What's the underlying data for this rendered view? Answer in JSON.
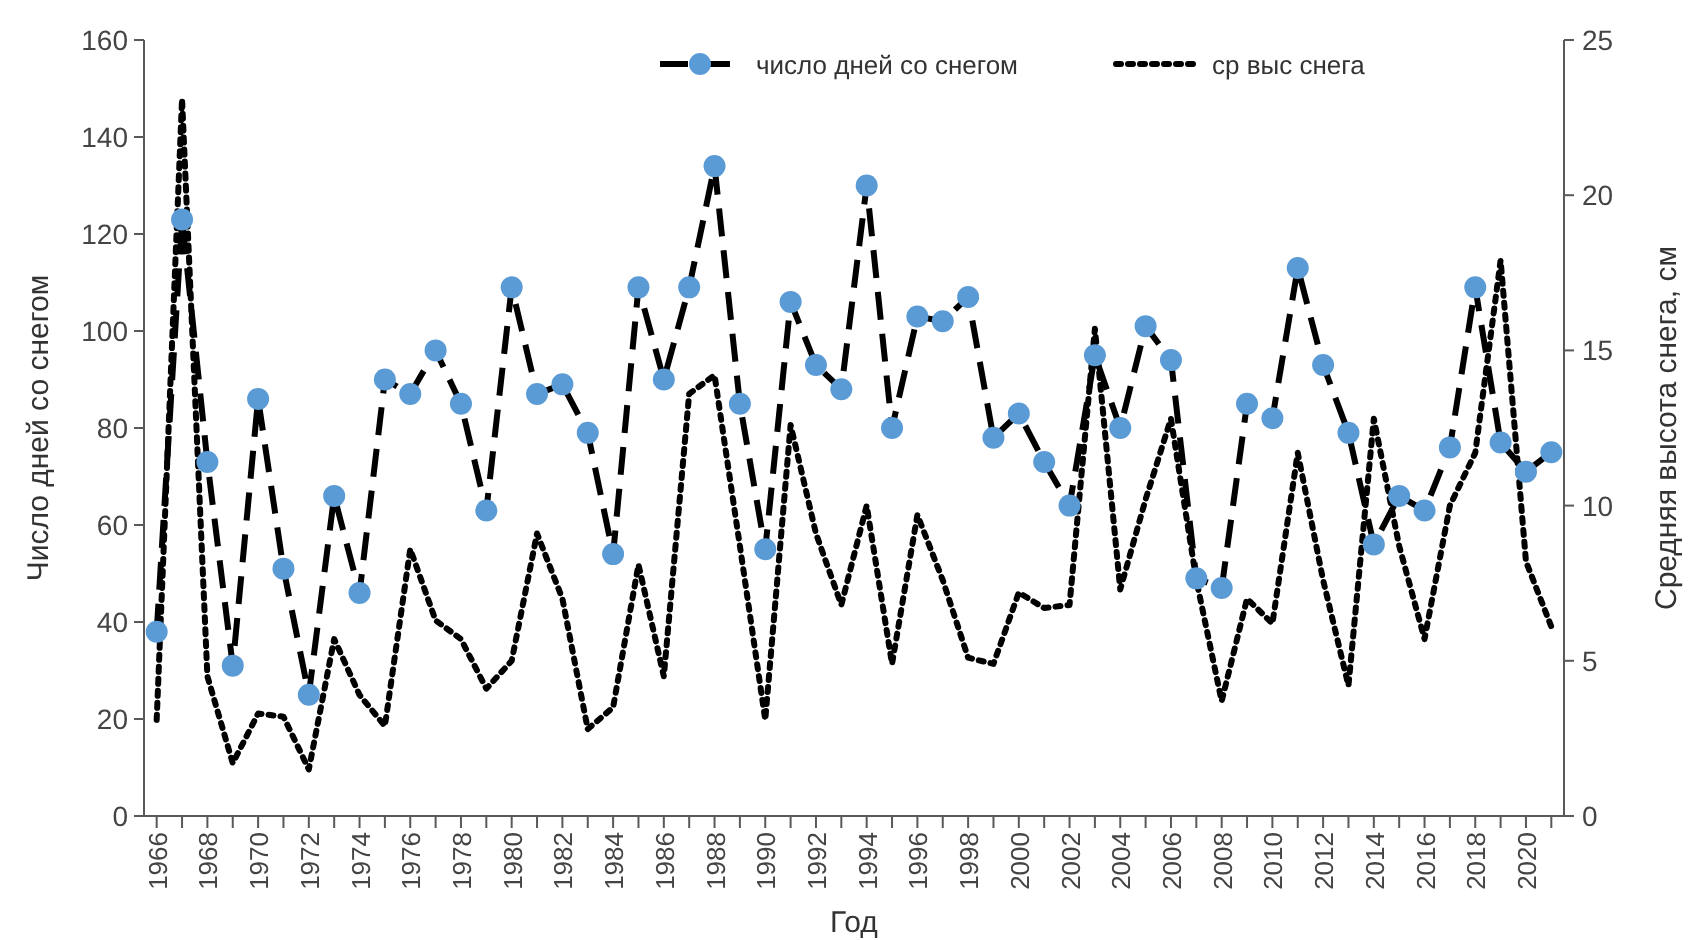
{
  "chart_data": {
    "type": "line",
    "xlabel": "Год",
    "ylabel": "Число дней со снегом",
    "y2label": "Средняя высота снега, см",
    "x": [
      1966,
      1967,
      1968,
      1969,
      1970,
      1971,
      1972,
      1973,
      1974,
      1975,
      1976,
      1977,
      1978,
      1979,
      1980,
      1981,
      1982,
      1983,
      1984,
      1985,
      1986,
      1987,
      1988,
      1989,
      1990,
      1991,
      1992,
      1993,
      1994,
      1995,
      1996,
      1997,
      1998,
      1999,
      2000,
      2001,
      2002,
      2003,
      2004,
      2005,
      2006,
      2007,
      2008,
      2009,
      2010,
      2011,
      2012,
      2013,
      2014,
      2015,
      2016,
      2017,
      2018,
      2019,
      2020,
      2021
    ],
    "series": [
      {
        "name": "число дней со снегом",
        "color": "#000000",
        "colors": [
          "#5b9bd5",
          "#5b9bd5",
          "#5b9bd5",
          "#5b9bd5",
          "#5b9bd5",
          "#5b9bd5",
          "#5b9bd5",
          "#5b9bd5",
          "#5b9bd5",
          "#5b9bd5",
          "#5b9bd5",
          "#5b9bd5",
          "#5b9bd5",
          "#5b9bd5",
          "#5b9bd5",
          "#5b9bd5",
          "#5b9bd5",
          "#5b9bd5",
          "#5b9bd5",
          "#5b9bd5",
          "#5b9bd5",
          "#5b9bd5",
          "#5b9bd5",
          "#5b9bd5",
          "#5b9bd5",
          "#5b9bd5",
          "#5b9bd5",
          "#5b9bd5",
          "#5b9bd5",
          "#5b9bd5",
          "#5b9bd5",
          "#5b9bd5",
          "#5b9bd5",
          "#5b9bd5",
          "#5b9bd5",
          "#5b9bd5",
          "#5b9bd5",
          "#5b9bd5",
          "#5b9bd5",
          "#5b9bd5",
          "#5b9bd5",
          "#5b9bd5",
          "#5b9bd5",
          "#5b9bd5",
          "#5b9bd5",
          "#5b9bd5",
          "#5b9bd5",
          "#5b9bd5",
          "#5b9bd5",
          "#5b9bd5",
          "#5b9bd5",
          "#5b9bd5",
          "#5b9bd5",
          "#5b9bd5",
          "#5b9bd5",
          "#5b9bd5"
        ],
        "marker": "circle",
        "line_style": "dashed",
        "values": [
          38,
          123,
          73,
          31,
          86,
          51,
          25,
          66,
          46,
          90,
          87,
          96,
          85,
          63,
          109,
          87,
          89,
          79,
          54,
          109,
          90,
          109,
          134,
          85,
          55,
          106,
          93,
          88,
          130,
          80,
          103,
          102,
          107,
          78,
          83,
          73,
          64,
          95,
          80,
          101,
          94,
          49,
          47,
          85,
          82,
          113,
          93,
          79,
          56,
          66,
          63,
          76,
          109,
          77,
          71,
          75
        ]
      },
      {
        "name": "ср выс снега",
        "color": "#000000",
        "marker": "none",
        "line_style": "dotted",
        "axis": "y2",
        "values": [
          3.1,
          23.1,
          4.5,
          1.7,
          3.3,
          3.2,
          1.5,
          5.7,
          3.9,
          2.9,
          8.6,
          6.3,
          5.7,
          4.1,
          5,
          9.1,
          7,
          2.8,
          3.5,
          8.1,
          4.5,
          13.6,
          14.2,
          8.7,
          3.1,
          12.6,
          9.1,
          6.8,
          10,
          4.9,
          9.7,
          7.6,
          5.1,
          4.9,
          7.2,
          6.7,
          6.8,
          15.7,
          7.3,
          10.2,
          12.8,
          7.6,
          3.7,
          7,
          6.2,
          11.7,
          7.6,
          4.2,
          12.8,
          8.7,
          5.7,
          10,
          11.7,
          17.9,
          8.2,
          6.1
        ]
      }
    ],
    "xlim": [
      1965.5,
      2021.5
    ],
    "xticks": [
      1966,
      {
        "value": 1967,
        "label": null
      },
      1968,
      {
        "value": 1969,
        "label": null
      },
      1970,
      {
        "value": 1971,
        "label": null
      },
      1972,
      {
        "value": 1973,
        "label": null
      },
      1974,
      {
        "value": 1975,
        "label": null
      },
      1976,
      {
        "value": 1977,
        "label": null
      },
      1978,
      {
        "value": 1979,
        "label": null
      },
      1980,
      {
        "value": 1981,
        "label": null
      },
      1982,
      {
        "value": 1983,
        "label": null
      },
      1984,
      {
        "value": 1985,
        "label": null
      },
      1986,
      {
        "value": 1987,
        "label": null
      },
      1988,
      {
        "value": 1989,
        "label": null
      },
      1990,
      {
        "value": 1991,
        "label": null
      },
      1992,
      {
        "value": 1993,
        "label": null
      },
      1994,
      {
        "value": 1995,
        "label": null
      },
      1996,
      {
        "value": 1997,
        "label": null
      },
      1998,
      {
        "value": 1999,
        "label": null
      },
      2000,
      {
        "value": 2001,
        "label": null
      },
      2002,
      {
        "value": 2003,
        "label": null
      },
      2004,
      {
        "value": 2005,
        "label": null
      },
      2006,
      {
        "value": 2007,
        "label": null
      },
      2008,
      {
        "value": 2009,
        "label": null
      },
      2010,
      {
        "value": 2011,
        "label": null
      },
      2012,
      {
        "value": 2013,
        "label": null
      },
      2014,
      {
        "value": 2015,
        "label": null
      },
      2016,
      {
        "value": 2017,
        "label": null
      },
      2018,
      {
        "value": 2019,
        "label": null
      },
      2020,
      {
        "value": 2021,
        "label": null
      }
    ],
    "ylim": [
      0,
      160
    ],
    "yticks": [
      0,
      20,
      40,
      60,
      80,
      100,
      120,
      140,
      160
    ],
    "y2lim": [
      0,
      25
    ],
    "y2ticks": [
      0,
      5,
      10,
      15,
      20,
      25
    ],
    "grid": false,
    "legend": "top right"
  }
}
